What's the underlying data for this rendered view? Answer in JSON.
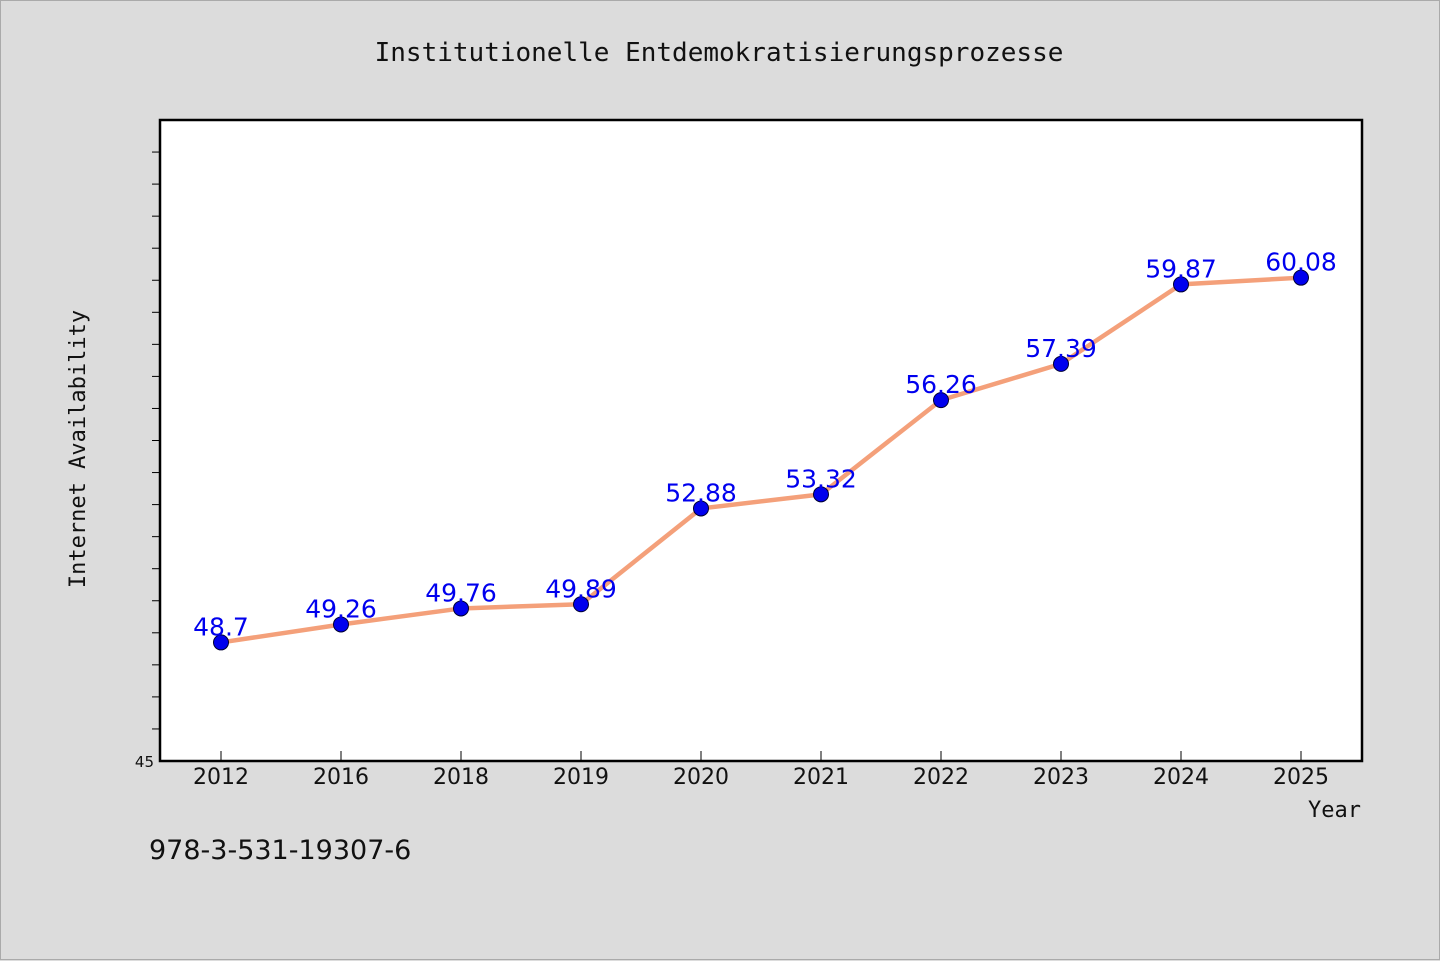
{
  "chart_data": {
    "type": "line",
    "title": "Institutionelle Entdemokratisierungsprozesse",
    "xlabel": "Year",
    "ylabel": "Internet Availability",
    "categories": [
      "2012",
      "2016",
      "2018",
      "2019",
      "2020",
      "2021",
      "2022",
      "2023",
      "2024",
      "2025"
    ],
    "series": [
      {
        "values": [
          48.7,
          49.26,
          49.76,
          49.89,
          52.88,
          53.32,
          56.26,
          57.39,
          59.87,
          60.08
        ],
        "data_labels": [
          "48.7",
          "49.26",
          "49.76",
          "49.89",
          "52.88",
          "53.32",
          "56.26",
          "57.39",
          "59.87",
          "60.08"
        ]
      }
    ],
    "ylim": [
      45,
      65
    ],
    "y_tick_labels": [
      "45"
    ],
    "y_minor_tick_step": 1,
    "grid": false,
    "legend": "none",
    "colors": {
      "line": "#f4a07a",
      "marker": "#0000ee",
      "data_label": "#0000ee",
      "plot_background": "#ffffff",
      "figure_background": "#dcdcdc"
    }
  },
  "footer": {
    "isbn": "978-3-531-19307-6"
  }
}
